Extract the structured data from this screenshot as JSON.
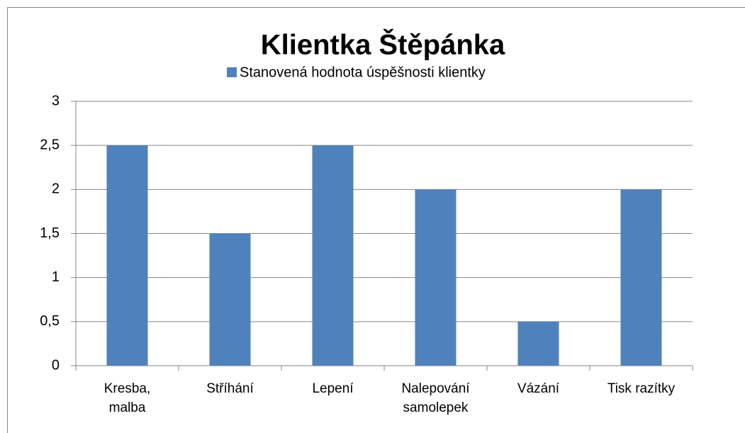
{
  "chart_data": {
    "type": "bar",
    "title": "Klientka Štěpánka",
    "categories": [
      "Kresba, malba",
      "Stříhání",
      "Lepení",
      "Nalepování samolepek",
      "Vázání",
      "Tisk razítky"
    ],
    "series": [
      {
        "name": "Stanovená hodnota úspěšnosti klientky",
        "color": "#4f81bd",
        "values": [
          2.5,
          1.5,
          2.5,
          2,
          0.5,
          2
        ]
      }
    ],
    "ylim": [
      0,
      3
    ],
    "yticks": [
      0,
      {
        "value": 0.5,
        "label": "0,5"
      },
      1,
      {
        "value": 1.5,
        "label": "1,5"
      },
      2,
      {
        "value": 2.5,
        "label": "2,5"
      },
      3
    ],
    "grid": true,
    "legend": "top"
  }
}
